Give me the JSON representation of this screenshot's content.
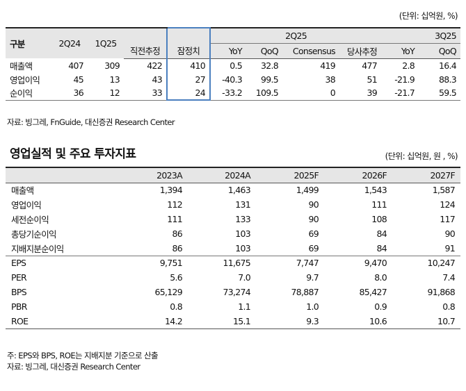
{
  "table1": {
    "unit": "(단위: 십억원, %)",
    "header": {
      "label": "구분",
      "col_2q24": "2Q24",
      "col_1q25": "1Q25",
      "group_2q25": "2Q25",
      "group_3q25": "3Q25",
      "col_prev_est": "직전추정",
      "col_prelim": "잠정치",
      "col_yoy": "YoY",
      "col_qoq": "QoQ",
      "col_consensus": "Consensus",
      "col_our_est": "당사추정",
      "col_3q_yoy": "YoY",
      "col_3q_qoq": "QoQ"
    },
    "rows": [
      {
        "label": "매출액",
        "v2q24": "407",
        "v1q25": "309",
        "prev": "422",
        "prelim": "410",
        "yoy": "0.5",
        "qoq": "32.8",
        "cons": "419",
        "est": "477",
        "yoy3": "2.8",
        "qoq3": "16.4"
      },
      {
        "label": "영업이익",
        "v2q24": "45",
        "v1q25": "13",
        "prev": "43",
        "prelim": "27",
        "yoy": "-40.3",
        "qoq": "99.5",
        "cons": "38",
        "est": "51",
        "yoy3": "-21.9",
        "qoq3": "88.3"
      },
      {
        "label": "순이익",
        "v2q24": "36",
        "v1q25": "12",
        "prev": "33",
        "prelim": "24",
        "yoy": "-33.2",
        "qoq": "109.5",
        "cons": "0",
        "est": "39",
        "yoy3": "-21.7",
        "qoq3": "59.5"
      }
    ],
    "source": "자료: 빙그레, FnGuide, 대신증권 Research Center"
  },
  "section_title": "영업실적 및 주요 투자지표",
  "table2": {
    "unit": "(단위: 십억원, 원 , %)",
    "headers": [
      "",
      "2023A",
      "2024A",
      "2025F",
      "2026F",
      "2027F"
    ],
    "rows": [
      {
        "label": "매출액",
        "values": [
          "1,394",
          "1,463",
          "1,499",
          "1,543",
          "1,587"
        ]
      },
      {
        "label": "영업이익",
        "values": [
          "112",
          "131",
          "90",
          "111",
          "124"
        ]
      },
      {
        "label": "세전순이익",
        "values": [
          "111",
          "133",
          "90",
          "108",
          "117"
        ]
      },
      {
        "label": "총당기순이익",
        "values": [
          "86",
          "103",
          "69",
          "84",
          "90"
        ]
      },
      {
        "label": "지배지분순이익",
        "values": [
          "86",
          "103",
          "69",
          "84",
          "91"
        ]
      },
      {
        "label": "EPS",
        "values": [
          "9,751",
          "11,675",
          "7,747",
          "9,470",
          "10,247"
        ]
      },
      {
        "label": "PER",
        "values": [
          "5.6",
          "7.0",
          "9.7",
          "8.0",
          "7.4"
        ]
      },
      {
        "label": "BPS",
        "values": [
          "65,129",
          "73,274",
          "78,887",
          "85,427",
          "91,868"
        ]
      },
      {
        "label": "PBR",
        "values": [
          "0.8",
          "1.1",
          "1.0",
          "0.9",
          "0.8"
        ]
      },
      {
        "label": "ROE",
        "values": [
          "14.2",
          "15.1",
          "9.3",
          "10.6",
          "10.7"
        ]
      }
    ],
    "note": "주: EPS와 BPS, ROE는 지배지분 기준으로 산출",
    "source": "자료: 빙그레, 대신증권 Research Center"
  }
}
